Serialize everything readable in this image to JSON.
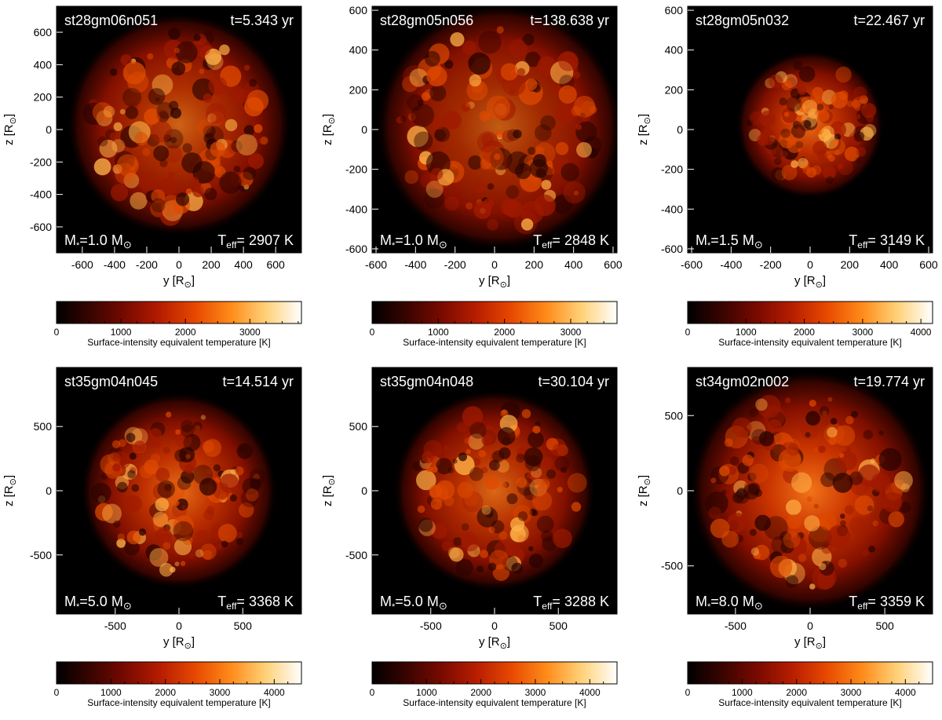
{
  "figure": {
    "panels": [
      {
        "id": "st28gm06n051",
        "time": "t=5.343 yr",
        "mass": "1.0",
        "teff": "2907 K",
        "ticks": [
          "-600",
          "-400",
          "-200",
          "0",
          "200",
          "400",
          "600"
        ],
        "ticks_val": [
          -600,
          -400,
          -200,
          0,
          200,
          400,
          600
        ],
        "range": [
          -760,
          760
        ],
        "cbar_ticks": [
          "0",
          "1000",
          "2000",
          "3000"
        ],
        "cbar_ticks_val": [
          0,
          1000,
          2000,
          3000
        ],
        "cbar_max": 3800,
        "star": {
          "cx": 0.0,
          "cy": -0.02,
          "r": 0.41,
          "bright": 0.85
        }
      },
      {
        "id": "st28gm05n056",
        "time": "t=138.638 yr",
        "mass": "1.0",
        "teff": "2848 K",
        "ticks": [
          "-600",
          "-400",
          "-200",
          "0",
          "200",
          "400",
          "600"
        ],
        "ticks_val": [
          -600,
          -400,
          -200,
          0,
          200,
          400,
          600
        ],
        "range": [
          -620,
          620
        ],
        "cbar_ticks": [
          "0",
          "1000",
          "2000",
          "3000"
        ],
        "cbar_ticks_val": [
          0,
          1000,
          2000,
          3000
        ],
        "cbar_max": 3700,
        "star": {
          "cx": 0.02,
          "cy": -0.01,
          "r": 0.45,
          "bright": 0.8
        }
      },
      {
        "id": "st28gm05n032",
        "time": "t=22.467 yr",
        "mass": "1.5",
        "teff": "3149 K",
        "ticks": [
          "-600",
          "-400",
          "-200",
          "0",
          "200",
          "400",
          "600"
        ],
        "ticks_val": [
          -600,
          -400,
          -200,
          0,
          200,
          400,
          600
        ],
        "range": [
          -620,
          620
        ],
        "cbar_ticks": [
          "0",
          "1000",
          "2000",
          "3000",
          "4000"
        ],
        "cbar_ticks_val": [
          0,
          1000,
          2000,
          3000,
          4000
        ],
        "cbar_max": 4200,
        "star": {
          "cx": 0.0,
          "cy": -0.02,
          "r": 0.27,
          "bright": 0.95
        }
      },
      {
        "id": "st35gm04n045",
        "time": "t=14.514 yr",
        "mass": "5.0",
        "teff": "3368 K",
        "ticks": [
          "-500",
          "0",
          "500"
        ],
        "ticks_val": [
          -500,
          0,
          500
        ],
        "range": [
          -960,
          960
        ],
        "cbar_ticks": [
          "0",
          "1000",
          "2000",
          "3000",
          "4000"
        ],
        "cbar_ticks_val": [
          0,
          1000,
          2000,
          3000,
          4000
        ],
        "cbar_max": 4500,
        "star": {
          "cx": 0.0,
          "cy": 0.0,
          "r": 0.36,
          "bright": 0.95
        }
      },
      {
        "id": "st35gm04n048",
        "time": "t=30.104 yr",
        "mass": "5.0",
        "teff": "3288 K",
        "ticks": [
          "-500",
          "0",
          "500"
        ],
        "ticks_val": [
          -500,
          0,
          500
        ],
        "range": [
          -960,
          960
        ],
        "cbar_ticks": [
          "0",
          "1000",
          "2000",
          "3000",
          "4000"
        ],
        "cbar_ticks_val": [
          0,
          1000,
          2000,
          3000,
          4000
        ],
        "cbar_max": 4500,
        "star": {
          "cx": 0.0,
          "cy": 0.0,
          "r": 0.37,
          "bright": 0.9
        }
      },
      {
        "id": "st34gm02n002",
        "time": "t=19.774 yr",
        "mass": "8.0",
        "teff": "3359 K",
        "ticks": [
          "-500",
          "0",
          "500"
        ],
        "ticks_val": [
          -500,
          0,
          500
        ],
        "range": [
          -820,
          820
        ],
        "cbar_ticks": [
          "0",
          "1000",
          "2000",
          "3000",
          "4000"
        ],
        "cbar_ticks_val": [
          0,
          1000,
          2000,
          3000,
          4000
        ],
        "cbar_max": 4500,
        "star": {
          "cx": 0.0,
          "cy": 0.0,
          "r": 0.44,
          "bright": 1.0
        }
      }
    ],
    "x_label": "y [R",
    "y_label": "z [R",
    "sun_symbol": "⊙",
    "mass_prefix": "M",
    "mass_star": "*",
    "mass_eq": "=",
    "mass_unit": " M",
    "teff_prefix": "T",
    "teff_sub": "eff",
    "teff_eq": "= ",
    "colorbar_label": "Surface-intensity equivalent temperature [K]",
    "colors": {
      "background": "#000000",
      "cmap": [
        "#000000",
        "#3a0400",
        "#7a0a00",
        "#b81e00",
        "#e84a00",
        "#ff8c1a",
        "#ffd27a",
        "#ffffff"
      ]
    }
  }
}
